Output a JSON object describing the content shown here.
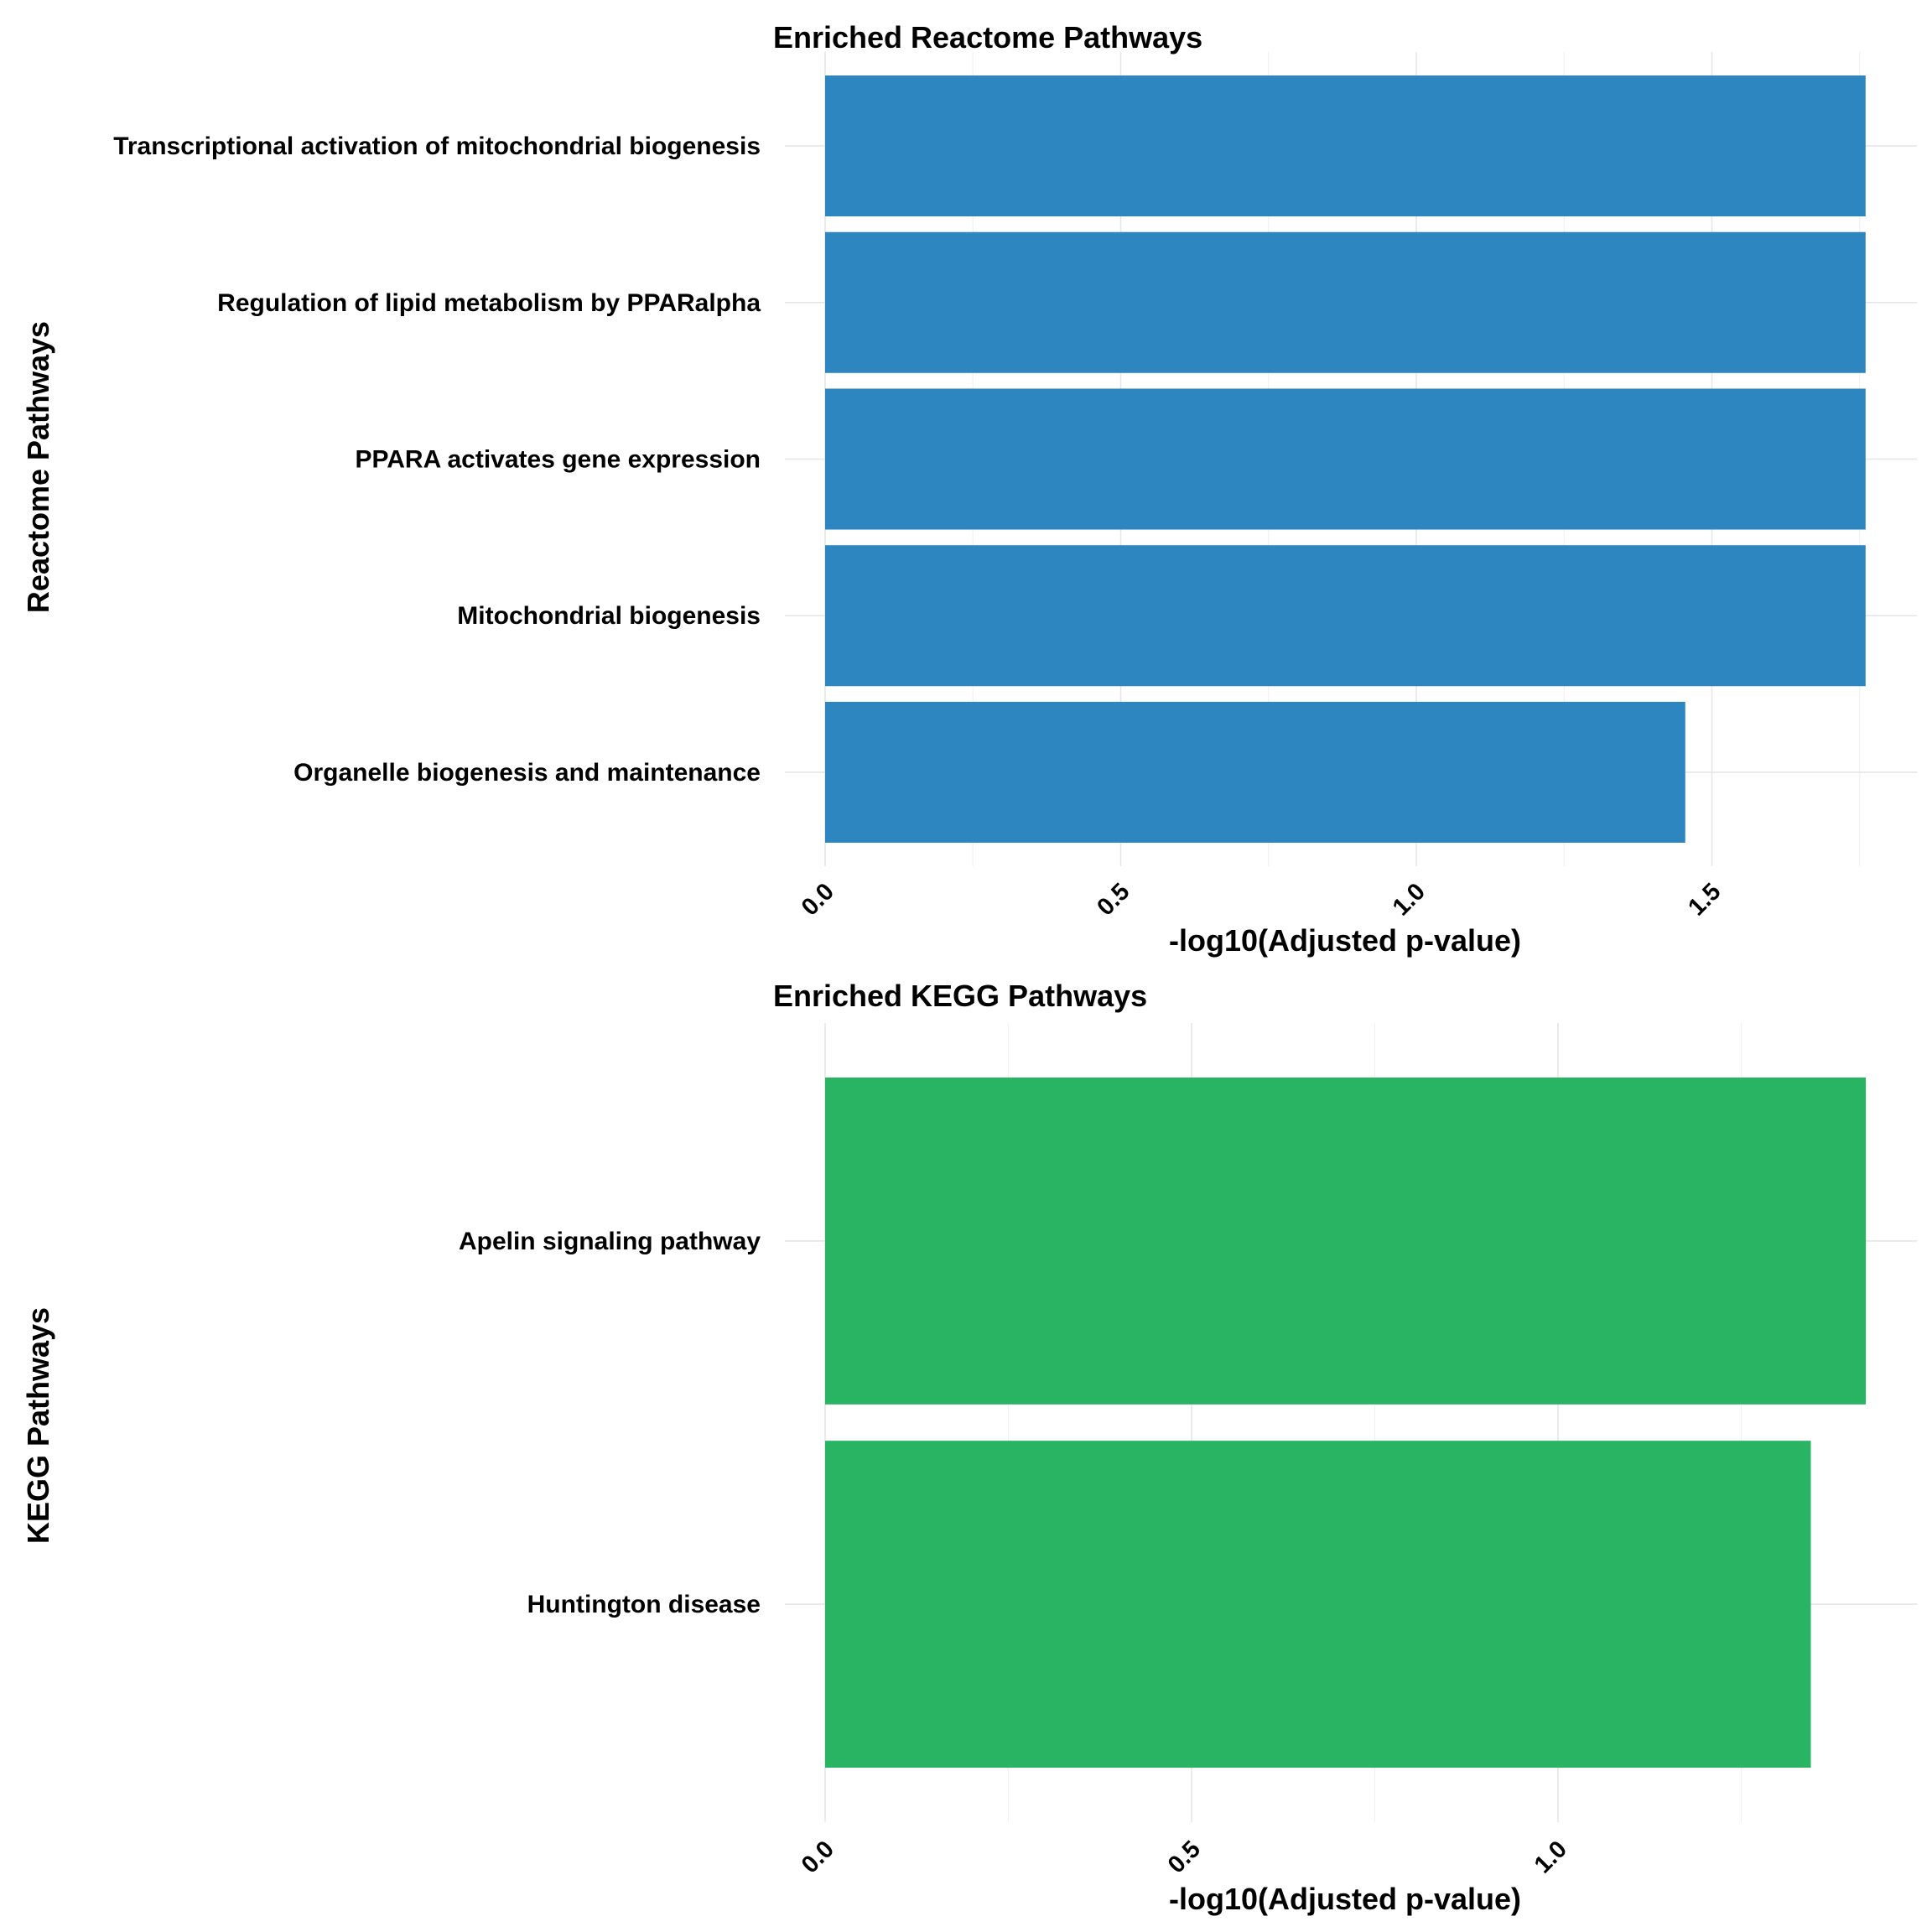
{
  "chart_data": [
    {
      "type": "bar",
      "orientation": "horizontal",
      "title": "Enriched Reactome Pathways",
      "xlabel": "-log10(Adjusted p-value)",
      "ylabel": "Reactome Pathways",
      "bar_color": "#2E86C1",
      "xlim": [
        0,
        1.85
      ],
      "x_ticks": [
        0.0,
        0.5,
        1.0,
        1.5
      ],
      "x_tick_labels": [
        "0.0",
        "0.5",
        "1.0",
        "1.5"
      ],
      "grid": true,
      "legend": "none",
      "categories": [
        "Transcriptional activation of mitochondrial biogenesis",
        "Regulation of lipid metabolism by PPARalpha",
        "PPARA activates gene expression",
        "Mitochondrial biogenesis",
        "Organelle biogenesis and maintenance"
      ],
      "values": [
        1.76,
        1.76,
        1.76,
        1.76,
        1.455
      ]
    },
    {
      "type": "bar",
      "orientation": "horizontal",
      "title": "Enriched KEGG Pathways",
      "xlabel": "-log10(Adjusted p-value)",
      "ylabel": "KEGG Pathways",
      "bar_color": "#28B463",
      "xlim": [
        0,
        1.49
      ],
      "x_ticks": [
        0.0,
        0.5,
        1.0
      ],
      "x_tick_labels": [
        "0.0",
        "0.5",
        "1.0"
      ],
      "grid": true,
      "legend": "none",
      "categories": [
        "Apelin signaling pathway",
        "Huntington disease"
      ],
      "values": [
        1.42,
        1.345
      ]
    }
  ]
}
